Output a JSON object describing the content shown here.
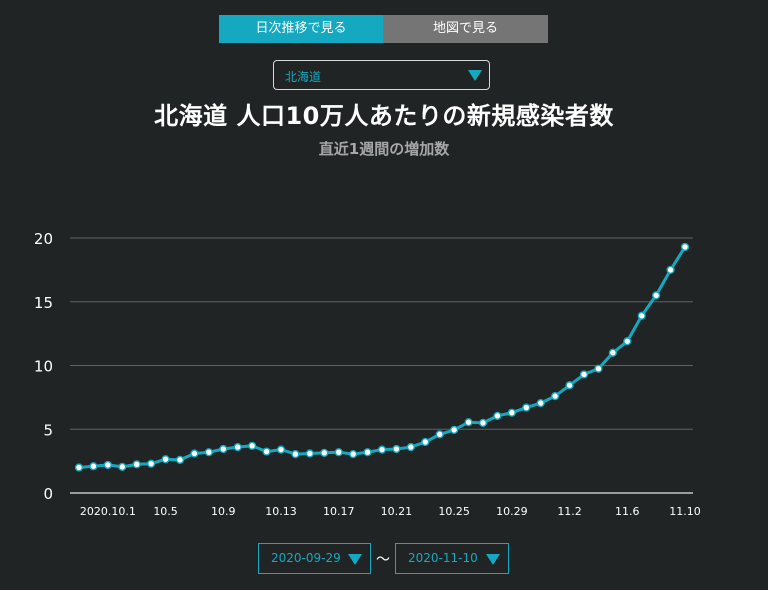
{
  "tabs": [
    {
      "label": "日次推移で見る",
      "active": true
    },
    {
      "label": "地図で見る",
      "active": false
    }
  ],
  "region_select": {
    "value": "北海道"
  },
  "range": {
    "start": "2020-09-29",
    "separator": "〜",
    "end": "2020-11-10"
  },
  "colors": {
    "accent": "#15a9c1",
    "background": "#212424",
    "grid": "#5f6363",
    "inactive_tab": "#757575"
  },
  "chart_data": {
    "type": "line",
    "title": "北海道 人口10万人あたりの新規感染者数",
    "subtitle": "直近1週間の増加数",
    "xlabel": "",
    "ylabel": "",
    "ylim": [
      0,
      20
    ],
    "yticks": [
      0,
      5,
      10,
      15,
      20
    ],
    "grid": true,
    "x": [
      "9.29",
      "9.30",
      "10.1",
      "10.2",
      "10.3",
      "10.4",
      "10.5",
      "10.6",
      "10.7",
      "10.8",
      "10.9",
      "10.10",
      "10.11",
      "10.12",
      "10.13",
      "10.14",
      "10.15",
      "10.16",
      "10.17",
      "10.18",
      "10.19",
      "10.20",
      "10.21",
      "10.22",
      "10.23",
      "10.24",
      "10.25",
      "10.26",
      "10.27",
      "10.28",
      "10.29",
      "10.30",
      "10.31",
      "11.1",
      "11.2",
      "11.3",
      "11.4",
      "11.5",
      "11.6",
      "11.7",
      "11.8",
      "11.9",
      "11.10"
    ],
    "x_tick_labels": [
      {
        "index": 2,
        "label": "2020.10.1"
      },
      {
        "index": 6,
        "label": "10.5"
      },
      {
        "index": 10,
        "label": "10.9"
      },
      {
        "index": 14,
        "label": "10.13"
      },
      {
        "index": 18,
        "label": "10.17"
      },
      {
        "index": 22,
        "label": "10.21"
      },
      {
        "index": 26,
        "label": "10.25"
      },
      {
        "index": 30,
        "label": "10.29"
      },
      {
        "index": 34,
        "label": "11.2"
      },
      {
        "index": 38,
        "label": "11.6"
      },
      {
        "index": 42,
        "label": "11.10"
      }
    ],
    "series": [
      {
        "values": [
          2.0,
          2.1,
          2.2,
          2.05,
          2.25,
          2.3,
          2.65,
          2.6,
          3.1,
          3.2,
          3.45,
          3.6,
          3.7,
          3.25,
          3.4,
          3.05,
          3.1,
          3.15,
          3.2,
          3.05,
          3.2,
          3.4,
          3.45,
          3.6,
          4.0,
          4.6,
          4.95,
          5.55,
          5.5,
          6.05,
          6.3,
          6.7,
          7.05,
          7.6,
          8.45,
          9.3,
          9.75,
          11.0,
          11.9,
          13.9,
          15.5,
          17.5,
          19.3
        ]
      }
    ]
  }
}
